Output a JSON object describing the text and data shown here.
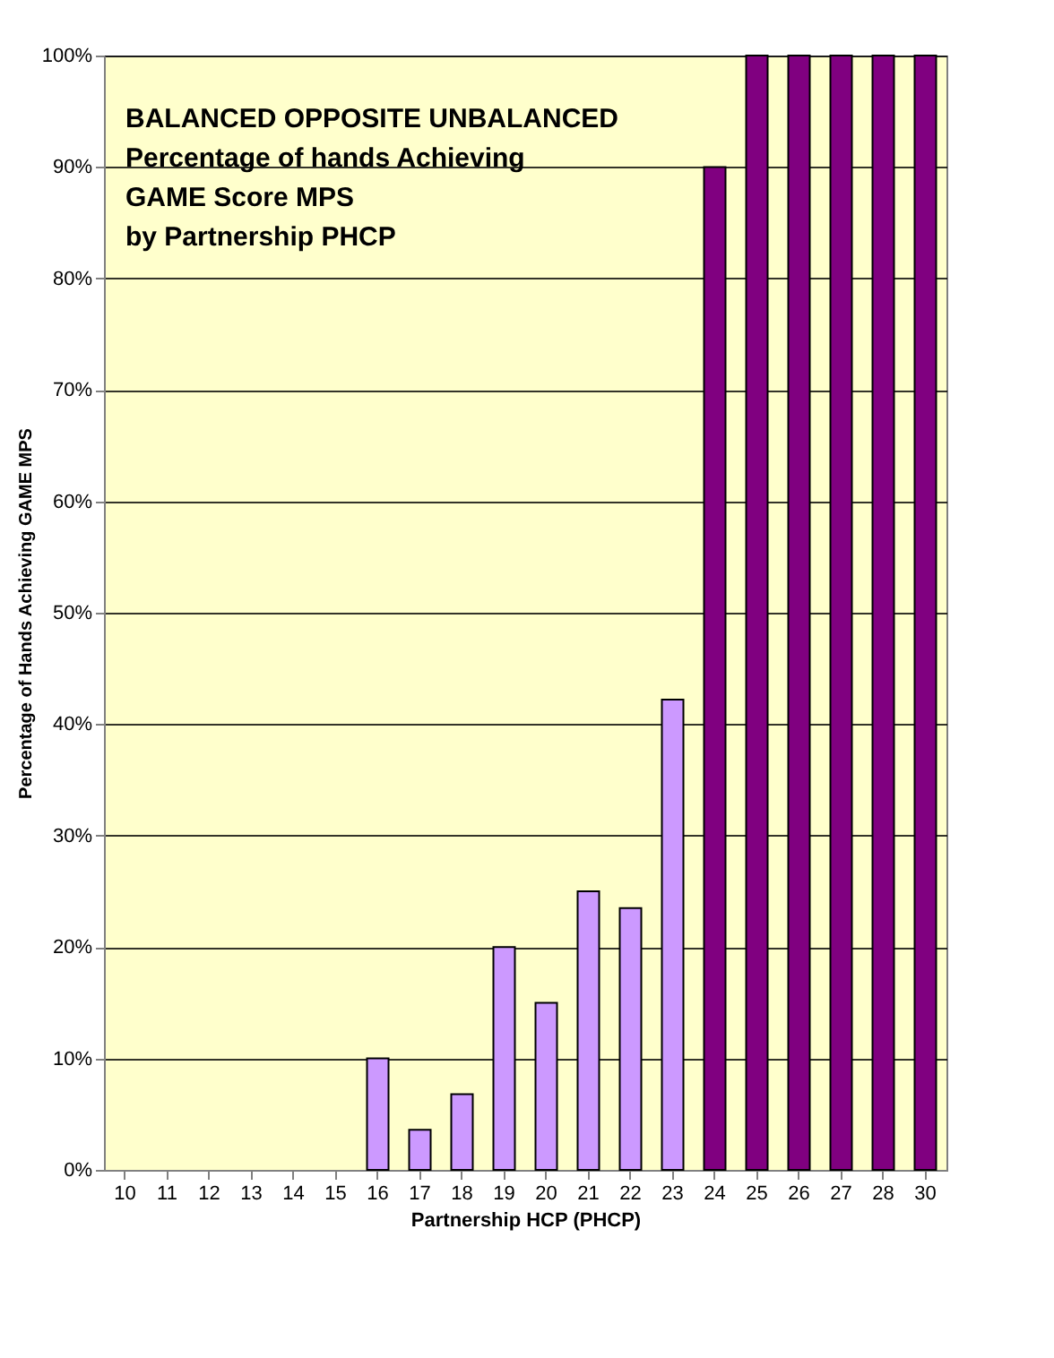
{
  "chart_data": {
    "type": "bar",
    "title": "BALANCED OPPOSITE UNBALANCED\nPercentage of hands Achieving\nGAME Score MPS\nby Partnership PHCP",
    "xlabel": "Partnership HCP (PHCP)",
    "ylabel": "Percentage of Hands Achieving GAME MPS",
    "categories": [
      "10",
      "11",
      "12",
      "13",
      "14",
      "15",
      "16",
      "17",
      "18",
      "19",
      "20",
      "21",
      "22",
      "23",
      "24",
      "25",
      "26",
      "27",
      "28",
      "30"
    ],
    "values": [
      null,
      null,
      null,
      null,
      null,
      null,
      10,
      3.6,
      6.8,
      20,
      15,
      25,
      23.5,
      42.2,
      90,
      100,
      100,
      100,
      100,
      100
    ],
    "colors": [
      "#cc99ff",
      "#cc99ff",
      "#cc99ff",
      "#cc99ff",
      "#cc99ff",
      "#cc99ff",
      "#cc99ff",
      "#cc99ff",
      "#cc99ff",
      "#cc99ff",
      "#cc99ff",
      "#cc99ff",
      "#cc99ff",
      "#cc99ff",
      "#800080",
      "#800080",
      "#800080",
      "#800080",
      "#800080",
      "#800080"
    ],
    "ylim": [
      0,
      100
    ],
    "yticks": [
      {
        "value": 0,
        "label": "0%"
      },
      {
        "value": 10,
        "label": "10%"
      },
      {
        "value": 20,
        "label": "20%"
      },
      {
        "value": 30,
        "label": "30%"
      },
      {
        "value": 40,
        "label": "40%"
      },
      {
        "value": 50,
        "label": "50%"
      },
      {
        "value": 60,
        "label": "60%"
      },
      {
        "value": 70,
        "label": "70%"
      },
      {
        "value": 80,
        "label": "80%"
      },
      {
        "value": 90,
        "label": "90%"
      },
      {
        "value": 100,
        "label": "100%"
      }
    ],
    "grid": "y"
  }
}
